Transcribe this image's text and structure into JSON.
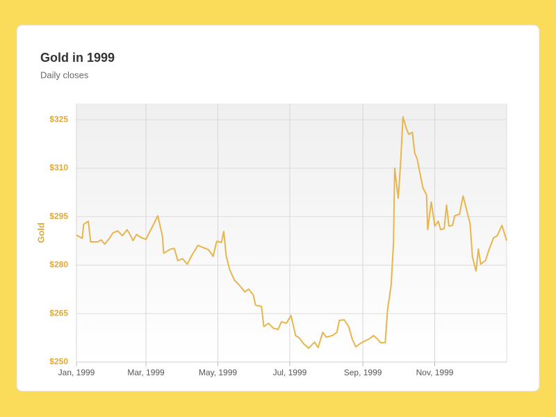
{
  "chart_data": {
    "type": "line",
    "title": "Gold in 1999",
    "subtitle": "Daily closes",
    "y_label": "Gold",
    "color": "#e8b54a",
    "grid": true,
    "xlim": [
      0,
      365
    ],
    "xticks": [
      {
        "value": 0,
        "label": "Jan, 1999"
      },
      {
        "value": 59,
        "label": "Mar, 1999"
      },
      {
        "value": 120,
        "label": "May, 1999"
      },
      {
        "value": 181,
        "label": "Jul, 1999"
      },
      {
        "value": 243,
        "label": "Sep, 1999"
      },
      {
        "value": 304,
        "label": "Nov, 1999"
      }
    ],
    "ylim": [
      250,
      330
    ],
    "yticks": [
      {
        "value": 250,
        "label": "$250"
      },
      {
        "value": 265,
        "label": "$265"
      },
      {
        "value": 280,
        "label": "$280"
      },
      {
        "value": 295,
        "label": "$295"
      },
      {
        "value": 310,
        "label": "$310"
      },
      {
        "value": 325,
        "label": "$325"
      }
    ],
    "x": [
      0,
      5,
      6,
      10,
      12,
      18,
      21,
      24,
      28,
      31,
      35,
      39,
      43,
      46,
      48,
      51,
      55,
      59,
      62,
      66,
      69,
      73,
      74,
      80,
      83,
      86,
      90,
      94,
      98,
      103,
      107,
      112,
      116,
      119,
      123,
      125,
      127,
      130,
      134,
      138,
      143,
      146,
      150,
      152,
      157,
      159,
      163,
      167,
      171,
      174,
      178,
      182,
      186,
      189,
      193,
      197,
      202,
      205,
      209,
      212,
      217,
      221,
      223,
      227,
      231,
      234,
      237,
      241,
      244,
      248,
      252,
      255,
      258,
      262,
      264,
      267,
      269,
      270,
      273,
      275,
      277,
      280,
      282,
      285,
      287,
      289,
      291,
      294,
      297,
      298,
      301,
      304,
      307,
      309,
      312,
      314,
      316,
      319,
      321,
      325,
      328,
      330,
      334,
      336,
      339,
      341,
      343,
      347,
      350,
      354,
      357,
      361,
      365
    ],
    "values": [
      289.3,
      288.3,
      292.6,
      293.6,
      287.2,
      287.2,
      287.8,
      286.5,
      288.3,
      290,
      290.6,
      289.1,
      291,
      289.1,
      287.6,
      289.5,
      288.5,
      288,
      290.2,
      293,
      295.3,
      288.9,
      283.7,
      285,
      285.2,
      281.4,
      282,
      280.3,
      283.1,
      286.1,
      285.5,
      284.8,
      282.7,
      287.4,
      287,
      290.4,
      282.9,
      278.6,
      275.4,
      273.9,
      271.7,
      272.6,
      270.8,
      267.6,
      267.2,
      261,
      262,
      260.5,
      260.1,
      262.5,
      262,
      264.4,
      258.2,
      257.5,
      255.6,
      254.3,
      256.2,
      254.5,
      259.2,
      257.7,
      258.2,
      259.2,
      262.9,
      263.1,
      261,
      257.1,
      254.7,
      255.8,
      256.4,
      257.1,
      258.2,
      257.3,
      256,
      256,
      266.3,
      273.9,
      286.8,
      310,
      300.7,
      311.5,
      325.9,
      322.2,
      320.5,
      321.1,
      314.7,
      313,
      309.3,
      303.9,
      301.8,
      291,
      299.6,
      292.1,
      293.6,
      291,
      291.3,
      298.6,
      292.1,
      292.3,
      295.3,
      295.8,
      301.4,
      298.6,
      292.8,
      282.5,
      278.2,
      285,
      280.3,
      281.4,
      284.8,
      288.5,
      289.1,
      292.3,
      287.6
    ]
  }
}
